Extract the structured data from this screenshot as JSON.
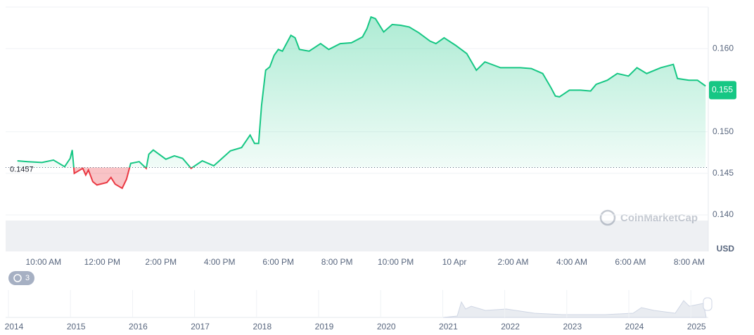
{
  "chart_data": {
    "type": "line",
    "x": [
      9.11,
      9.47,
      9.95,
      10.34,
      10.72,
      10.91,
      10.98,
      11.05,
      11.34,
      11.44,
      11.53,
      11.68,
      11.82,
      12.16,
      12.3,
      12.44,
      12.68,
      12.83,
      12.97,
      13.26,
      13.5,
      13.59,
      13.74,
      14.17,
      14.46,
      14.74,
      15.03,
      15.41,
      15.8,
      15.99,
      16.37,
      16.75,
      17.04,
      17.19,
      17.33,
      17.43,
      17.57,
      17.71,
      17.86,
      18.0,
      18.14,
      18.43,
      18.57,
      18.72,
      19.05,
      19.44,
      19.72,
      20.11,
      20.49,
      20.87,
      21.02,
      21.16,
      21.31,
      21.59,
      21.88,
      22.17,
      22.46,
      22.79,
      23.17,
      23.37,
      23.65,
      24.04,
      24.42,
      24.75,
      25.04,
      25.57,
      25.9,
      26.24,
      26.62,
      27.01,
      27.29,
      27.44,
      27.58,
      27.92,
      28.3,
      28.64,
      28.83,
      29.21,
      29.55,
      29.93,
      30.22,
      30.55,
      31.03,
      31.46,
      31.6,
      31.99,
      32.28,
      32.56
    ],
    "series": [
      {
        "name": "Price",
        "color": "#16c784",
        "below_color": "#ea3943",
        "values": [
          0.1465,
          0.1464,
          0.1463,
          0.1466,
          0.1458,
          0.1468,
          0.1478,
          0.145,
          0.1456,
          0.1448,
          0.1454,
          0.144,
          0.1436,
          0.1439,
          0.1445,
          0.1437,
          0.1432,
          0.1443,
          0.1462,
          0.1464,
          0.1456,
          0.1473,
          0.1478,
          0.1467,
          0.1471,
          0.1468,
          0.1456,
          0.1465,
          0.1459,
          0.1465,
          0.1477,
          0.1481,
          0.1496,
          0.1486,
          0.1486,
          0.1532,
          0.1574,
          0.1578,
          0.1592,
          0.1599,
          0.1597,
          0.1616,
          0.1613,
          0.1599,
          0.1597,
          0.1606,
          0.1599,
          0.1606,
          0.1607,
          0.1614,
          0.1624,
          0.1638,
          0.1636,
          0.162,
          0.1629,
          0.1628,
          0.1626,
          0.1619,
          0.1609,
          0.1606,
          0.1613,
          0.1604,
          0.1594,
          0.1574,
          0.1584,
          0.1577,
          0.1577,
          0.1577,
          0.1576,
          0.157,
          0.1553,
          0.1543,
          0.1542,
          0.155,
          0.155,
          0.1549,
          0.1557,
          0.1562,
          0.157,
          0.1567,
          0.1577,
          0.157,
          0.1577,
          0.1581,
          0.1564,
          0.1562,
          0.1562,
          0.1555
        ]
      }
    ],
    "baseline": 0.1457,
    "price_tag": {
      "value": 0.155,
      "label": "0.155"
    },
    "xlim": [
      8.71,
      32.65
    ],
    "xticks": [
      {
        "value": 10,
        "label": "10:00 AM"
      },
      {
        "value": 12,
        "label": "12:00 PM"
      },
      {
        "value": 14,
        "label": "2:00 PM"
      },
      {
        "value": 16,
        "label": "4:00 PM"
      },
      {
        "value": 18,
        "label": "6:00 PM"
      },
      {
        "value": 20,
        "label": "8:00 PM"
      },
      {
        "value": 22,
        "label": "10:00 PM"
      },
      {
        "value": 24,
        "label": "10 Apr"
      },
      {
        "value": 26,
        "label": "2:00 AM"
      },
      {
        "value": 28,
        "label": "4:00 AM"
      },
      {
        "value": 30,
        "label": "6:00 AM"
      },
      {
        "value": 32,
        "label": "8:00 AM"
      }
    ],
    "ylim": [
      0.14,
      0.165
    ],
    "yticks": [
      {
        "value": 0.14,
        "label": "0.140"
      },
      0.145,
      {
        "value": 0.15,
        "label": "0.150"
      },
      {
        "value": 0.16,
        "label": "0.160"
      }
    ],
    "y_unit": "USD",
    "watermark": "CoinMarketCap",
    "badge": "3",
    "navigator_years": [
      "2014",
      "2015",
      "2016",
      "2017",
      "2018",
      "2019",
      "2020",
      "2021",
      "2022",
      "2023",
      "2024",
      "2025"
    ],
    "grid": true
  }
}
